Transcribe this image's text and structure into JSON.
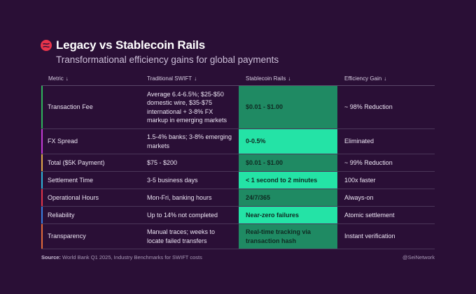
{
  "header": {
    "title": "Legacy vs Stablecoin Rails",
    "subtitle": "Transformational efficiency gains for global payments"
  },
  "colors": {
    "background": "#2a0f36",
    "stable_dark": "#1f8a63",
    "stable_bright": "#24e3a6",
    "logo": "#e8344b"
  },
  "table": {
    "columns": [
      "Metric",
      "Traditional SWIFT",
      "Stablecoin Rails",
      "Efficiency Gain"
    ],
    "sort_icon": "arrow-down-icon",
    "rows": [
      {
        "metric": "Transaction Fee",
        "swift": "Average 6.4-6.5%; $25-$50 domestic wire, $35-$75 international + 3-8% FX markup in emerging markets",
        "stable": "$0.01 - $1.00",
        "gain": "~ 98% Reduction",
        "accent": "#2fb35c",
        "tone": "dark"
      },
      {
        "metric": "FX Spread",
        "swift": "1.5-4% banks; 3-8% emerging markets",
        "stable": "0-0.5%",
        "gain": "Eliminated",
        "accent": "#c23bd4",
        "tone": "bright"
      },
      {
        "metric": "Total ($5K Payment)",
        "swift": "$75 - $200",
        "stable": "$0.01 - $1.00",
        "gain": "~ 99% Reduction",
        "accent": "#e0a84a",
        "tone": "mid"
      },
      {
        "metric": "Settlement Time",
        "swift": "3-5 business days",
        "stable": "< 1 second to 2 minutes",
        "gain": "100x faster",
        "accent": "#2fb3d4",
        "tone": "bright"
      },
      {
        "metric": "Operational Hours",
        "swift": "Mon-Fri, banking hours",
        "stable": "24/7/365",
        "gain": "Always-on",
        "accent": "#e0344b",
        "tone": "dark"
      },
      {
        "metric": "Reliability",
        "swift": "Up to 14% not completed",
        "stable": "Near-zero failures",
        "gain": "Atomic settlement",
        "accent": "#3a7fe0",
        "tone": "bright"
      },
      {
        "metric": "Transparency",
        "swift": "Manual traces; weeks to locate failed transfers",
        "stable": "Real-time tracking via transaction hash",
        "gain": "Instant verification",
        "accent": "#e06a3a",
        "tone": "dark"
      }
    ]
  },
  "footer": {
    "source_label": "Source:",
    "source_text": "World Bank Q1 2025, Industry Benchmarks for SWIFT costs",
    "handle": "@SeiNetwork"
  }
}
